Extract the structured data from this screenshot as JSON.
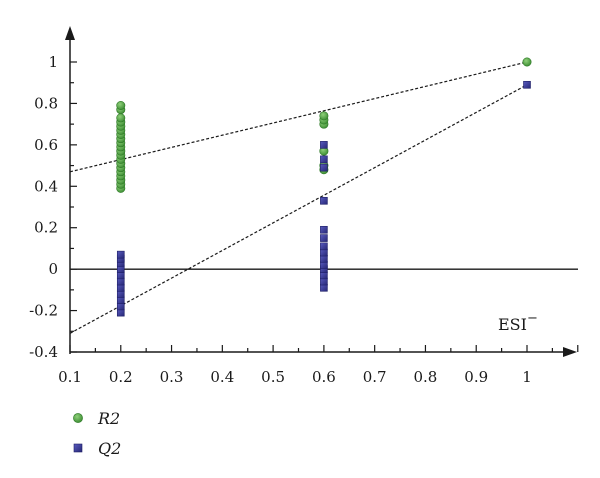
{
  "chart_data": {
    "type": "scatter",
    "title": "",
    "xlabel": "",
    "ylabel": "",
    "xlim": [
      0.1,
      1.1
    ],
    "ylim": [
      -0.4,
      1.1
    ],
    "x_ticks": [
      "0.1",
      "0.2",
      "0.3",
      "0.4",
      "0.5",
      "0.6",
      "0.7",
      "0.8",
      "0.9",
      "1"
    ],
    "y_ticks": [
      "-0.4",
      "-0.2",
      "0",
      "0.2",
      "0.4",
      "0.6",
      "0.8",
      "1"
    ],
    "grid": false,
    "annotation": {
      "text": "ESI",
      "superscript": "−"
    },
    "legend_position": "bottom-left",
    "series": [
      {
        "name": "R2",
        "marker": "circle",
        "color": "#4a9e3f",
        "points": [
          [
            0.2,
            0.39
          ],
          [
            0.2,
            0.41
          ],
          [
            0.2,
            0.43
          ],
          [
            0.2,
            0.45
          ],
          [
            0.2,
            0.47
          ],
          [
            0.2,
            0.49
          ],
          [
            0.2,
            0.51
          ],
          [
            0.2,
            0.53
          ],
          [
            0.2,
            0.55
          ],
          [
            0.2,
            0.57
          ],
          [
            0.2,
            0.59
          ],
          [
            0.2,
            0.61
          ],
          [
            0.2,
            0.63
          ],
          [
            0.2,
            0.65
          ],
          [
            0.2,
            0.67
          ],
          [
            0.2,
            0.69
          ],
          [
            0.2,
            0.71
          ],
          [
            0.2,
            0.73
          ],
          [
            0.2,
            0.77
          ],
          [
            0.2,
            0.79
          ],
          [
            0.6,
            0.48
          ],
          [
            0.6,
            0.5
          ],
          [
            0.6,
            0.57
          ],
          [
            0.6,
            0.7
          ],
          [
            0.6,
            0.72
          ],
          [
            0.6,
            0.74
          ],
          [
            1.0,
            1.0
          ]
        ],
        "trend": {
          "x": [
            0.1,
            1.0
          ],
          "y": [
            0.47,
            1.0
          ]
        }
      },
      {
        "name": "Q2",
        "marker": "square",
        "color": "#2e2f8f",
        "points": [
          [
            0.2,
            -0.21
          ],
          [
            0.2,
            -0.18
          ],
          [
            0.2,
            -0.15
          ],
          [
            0.2,
            -0.12
          ],
          [
            0.2,
            -0.09
          ],
          [
            0.2,
            -0.06
          ],
          [
            0.2,
            -0.03
          ],
          [
            0.2,
            0.0
          ],
          [
            0.2,
            0.03
          ],
          [
            0.2,
            0.05
          ],
          [
            0.2,
            0.07
          ],
          [
            0.6,
            -0.09
          ],
          [
            0.6,
            -0.06
          ],
          [
            0.6,
            -0.03
          ],
          [
            0.6,
            0.0
          ],
          [
            0.6,
            0.02
          ],
          [
            0.6,
            0.05
          ],
          [
            0.6,
            0.08
          ],
          [
            0.6,
            0.11
          ],
          [
            0.6,
            0.15
          ],
          [
            0.6,
            0.19
          ],
          [
            0.6,
            0.33
          ],
          [
            0.6,
            0.49
          ],
          [
            0.6,
            0.53
          ],
          [
            0.6,
            0.6
          ],
          [
            1.0,
            0.89
          ]
        ],
        "trend": {
          "x": [
            0.1,
            1.0
          ],
          "y": [
            -0.31,
            0.89
          ]
        }
      }
    ]
  }
}
